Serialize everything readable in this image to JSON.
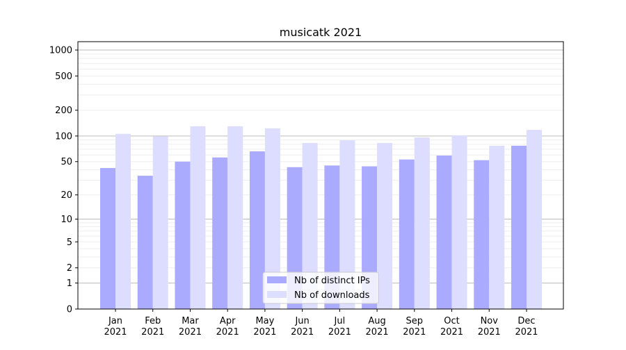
{
  "chart_data": {
    "type": "bar",
    "title": "musicatk 2021",
    "xlabel": "",
    "ylabel": "",
    "yscale": "symlog (log10(1+y))",
    "ylim": [
      0,
      1250
    ],
    "yticks": [
      0,
      1,
      2,
      5,
      10,
      20,
      50,
      100,
      200,
      500,
      1000
    ],
    "grid": true,
    "legend_position": "bottom-center",
    "categories": [
      "Jan\n2021",
      "Feb\n2021",
      "Mar\n2021",
      "Apr\n2021",
      "May\n2021",
      "Jun\n2021",
      "Jul\n2021",
      "Aug\n2021",
      "Sep\n2021",
      "Oct\n2021",
      "Nov\n2021",
      "Dec\n2021"
    ],
    "series": [
      {
        "name": "Nb of distinct IPs",
        "color": "#aaaaff",
        "values": [
          42,
          34,
          50,
          56,
          66,
          43,
          45,
          44,
          53,
          59,
          52,
          77
        ]
      },
      {
        "name": "Nb of downloads",
        "color": "#ddddff",
        "values": [
          106,
          99,
          130,
          130,
          123,
          83,
          89,
          83,
          96,
          102,
          77,
          118
        ]
      }
    ]
  }
}
